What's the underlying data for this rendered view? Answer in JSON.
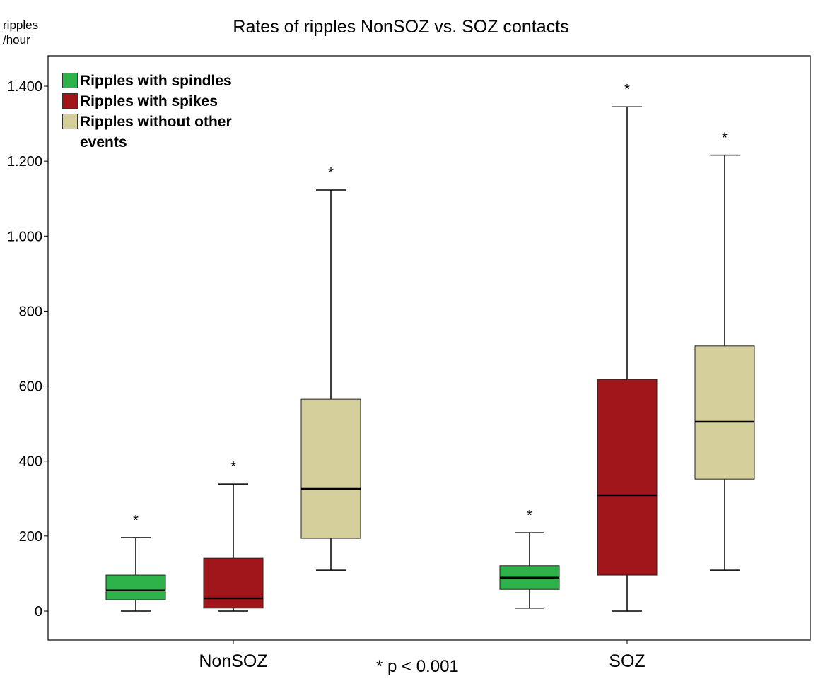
{
  "chart_data": {
    "type": "box",
    "title": "Rates of ripples NonSOZ vs. SOZ contacts",
    "ylabel": "ripples /hour",
    "xlabel": "",
    "ylim": [
      -75,
      1480
    ],
    "yticks": [
      0,
      200,
      400,
      600,
      800,
      1000,
      1200,
      1400
    ],
    "ytick_labels": [
      "0",
      "200",
      "400",
      "600",
      "800",
      "1.000",
      "1.200",
      "1.400"
    ],
    "categories": [
      "NonSOZ",
      "SOZ"
    ],
    "legend_position": "top-left",
    "series": [
      {
        "name": "Ripples with spindles",
        "color": "#2db34a",
        "boxes": [
          {
            "min": 0,
            "q1": 30,
            "median": 55,
            "q3": 96,
            "max": 196,
            "marker": "*"
          },
          {
            "min": 8,
            "q1": 58,
            "median": 89,
            "q3": 121,
            "max": 209,
            "marker": "*"
          }
        ]
      },
      {
        "name": "Ripples with spikes",
        "color": "#a0161b",
        "boxes": [
          {
            "min": 0,
            "q1": 8,
            "median": 34,
            "q3": 141,
            "max": 339,
            "marker": "*"
          },
          {
            "min": 0,
            "q1": 96,
            "median": 309,
            "q3": 618,
            "max": 1345,
            "marker": "*"
          }
        ]
      },
      {
        "name": "Ripples without other events",
        "color": "#d5cf9b",
        "boxes": [
          {
            "min": 109,
            "q1": 194,
            "median": 326,
            "q3": 565,
            "max": 1123,
            "marker": "*"
          },
          {
            "min": 109,
            "q1": 352,
            "median": 505,
            "q3": 707,
            "max": 1216,
            "marker": "*"
          }
        ]
      }
    ],
    "annotation": "*  p < 0.001"
  }
}
